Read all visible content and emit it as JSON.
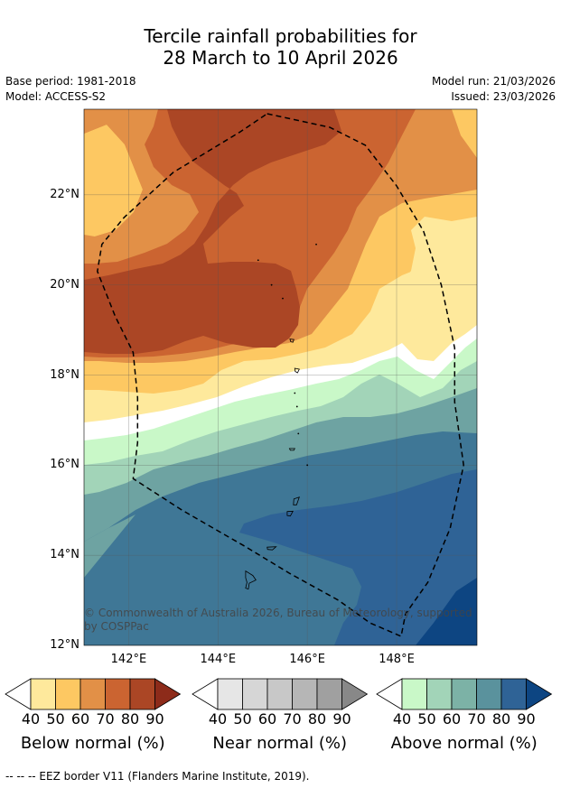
{
  "title": {
    "line1": "Tercile rainfall probabilities for",
    "line2": "28 March to 10 April 2026"
  },
  "meta": {
    "base_period": "Base period: 1981-2018",
    "model": "Model: ACCESS-S2",
    "model_run": "Model run: 21/03/2026",
    "issued": "Issued: 23/03/2026"
  },
  "map": {
    "lon_range": [
      141,
      149.8
    ],
    "lat_range": [
      12,
      23.9
    ],
    "x_ticks": [
      {
        "lon": 142,
        "label": "142°E"
      },
      {
        "lon": 144,
        "label": "144°E"
      },
      {
        "lon": 146,
        "label": "146°E"
      },
      {
        "lon": 148,
        "label": "148°E"
      }
    ],
    "y_ticks": [
      {
        "lat": 22,
        "label": "22°N"
      },
      {
        "lat": 20,
        "label": "20°N"
      },
      {
        "lat": 18,
        "label": "18°N"
      },
      {
        "lat": 16,
        "label": "16°N"
      },
      {
        "lat": 14,
        "label": "14°N"
      },
      {
        "lat": 12,
        "label": "12°N"
      }
    ],
    "gridlines": true,
    "credit_line1": "© Commonwealth of Australia 2026, Bureau of Meteorology, supported",
    "credit_line2": "by COSPPac",
    "eez_border": {
      "style": "dashed",
      "points": [
        [
          145.1,
          23.8
        ],
        [
          146.5,
          23.5
        ],
        [
          147.3,
          23.1
        ],
        [
          148.0,
          22.2
        ],
        [
          148.6,
          21.2
        ],
        [
          149.0,
          20.0
        ],
        [
          149.3,
          18.6
        ],
        [
          149.3,
          17.4
        ],
        [
          149.5,
          16.0
        ],
        [
          149.2,
          14.6
        ],
        [
          148.7,
          13.4
        ],
        [
          148.2,
          12.7
        ],
        [
          148.1,
          12.2
        ],
        [
          147.4,
          12.5
        ],
        [
          146.7,
          13.0
        ],
        [
          145.6,
          13.6
        ],
        [
          144.6,
          14.2
        ],
        [
          143.2,
          15.0
        ],
        [
          142.1,
          15.7
        ],
        [
          142.2,
          16.5
        ],
        [
          142.2,
          17.5
        ],
        [
          142.1,
          18.5
        ],
        [
          141.7,
          19.3
        ],
        [
          141.3,
          20.3
        ],
        [
          141.4,
          20.9
        ],
        [
          141.9,
          21.5
        ],
        [
          143.0,
          22.5
        ],
        [
          144.5,
          23.4
        ],
        [
          145.1,
          23.8
        ]
      ]
    },
    "islands": [
      {
        "name": "Guam",
        "points": [
          [
            144.62,
            13.65
          ],
          [
            144.78,
            13.55
          ],
          [
            144.85,
            13.45
          ],
          [
            144.7,
            13.38
          ],
          [
            144.68,
            13.25
          ],
          [
            144.62,
            13.27
          ],
          [
            144.65,
            13.4
          ],
          [
            144.62,
            13.5
          ]
        ]
      },
      {
        "name": "Rota",
        "points": [
          [
            145.1,
            14.18
          ],
          [
            145.3,
            14.19
          ],
          [
            145.22,
            14.12
          ],
          [
            145.11,
            14.13
          ]
        ]
      },
      {
        "name": "Tinian",
        "points": [
          [
            145.55,
            14.97
          ],
          [
            145.68,
            14.98
          ],
          [
            145.62,
            14.87
          ],
          [
            145.55,
            14.88
          ]
        ]
      },
      {
        "name": "Saipan",
        "points": [
          [
            145.7,
            15.25
          ],
          [
            145.82,
            15.29
          ],
          [
            145.76,
            15.12
          ],
          [
            145.69,
            15.12
          ]
        ]
      },
      {
        "name": "Anatahan",
        "points": [
          [
            145.6,
            16.37
          ],
          [
            145.72,
            16.37
          ],
          [
            145.7,
            16.33
          ],
          [
            145.62,
            16.33
          ]
        ]
      },
      {
        "name": "Pagan",
        "points": [
          [
            145.72,
            18.15
          ],
          [
            145.82,
            18.13
          ],
          [
            145.78,
            18.05
          ],
          [
            145.73,
            18.08
          ]
        ]
      },
      {
        "name": "Agrihan",
        "points": [
          [
            145.61,
            18.8
          ],
          [
            145.7,
            18.79
          ],
          [
            145.68,
            18.73
          ],
          [
            145.63,
            18.74
          ]
        ]
      }
    ],
    "specks": [
      [
        145.72,
        17.6
      ],
      [
        145.77,
        17.3
      ],
      [
        145.8,
        16.7
      ],
      [
        146.0,
        16.0
      ],
      [
        145.45,
        19.7
      ],
      [
        145.2,
        20.0
      ],
      [
        144.9,
        20.55
      ],
      [
        146.2,
        20.9
      ]
    ]
  },
  "colorbars": [
    {
      "label": "Below normal (%)",
      "colors": [
        "#ffffff",
        "#fee99c",
        "#fdc862",
        "#e29047",
        "#cb6431",
        "#ab4625",
        "#8d2b1a"
      ],
      "ticks": [
        "40",
        "50",
        "60",
        "70",
        "80",
        "90"
      ]
    },
    {
      "label": "Near normal (%)",
      "colors": [
        "#ffffff",
        "#e6e6e6",
        "#d6d6d6",
        "#c8c8c8",
        "#b6b6b6",
        "#a0a0a0",
        "#888888"
      ],
      "ticks": [
        "40",
        "50",
        "60",
        "70",
        "80",
        "90"
      ]
    },
    {
      "label": "Above normal (%)",
      "colors": [
        "#ffffff",
        "#c9f8c8",
        "#a2d4b8",
        "#7cb2a6",
        "#5a929d",
        "#2f6396",
        "#0d4582"
      ],
      "ticks": [
        "40",
        "50",
        "60",
        "70",
        "80",
        "90"
      ]
    }
  ],
  "footer": "--  --  -- EEZ border V11 (Flanders Marine Institute, 2019)."
}
